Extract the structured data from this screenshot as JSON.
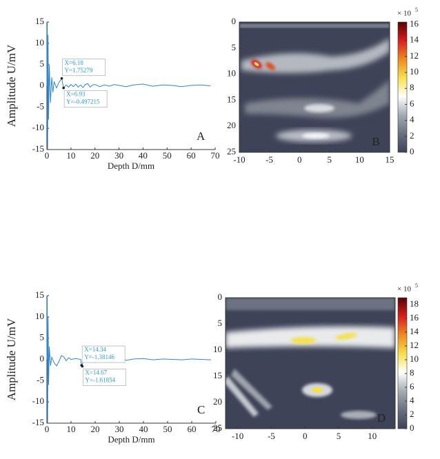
{
  "chart_data": [
    {
      "type": "line",
      "label": "A",
      "ylabel": "Amplitude U/mV",
      "xlabel": "Depth D/mm",
      "xlim": [
        0,
        70
      ],
      "ylim": [
        -15,
        15
      ],
      "xticks": [
        0,
        10,
        20,
        30,
        40,
        50,
        60,
        70
      ],
      "yticks": [
        15,
        10,
        5,
        0,
        -5,
        -10,
        -15
      ],
      "series": [
        {
          "color": "#2f86c8",
          "x": [
            0,
            0.15,
            0.3,
            0.5,
            0.7,
            1,
            1.5,
            2,
            2.5,
            3,
            4,
            5,
            6.18,
            6.93,
            8,
            9,
            10,
            11,
            12,
            13,
            14,
            15,
            16,
            17,
            18,
            19,
            20,
            22,
            24,
            26,
            28,
            30,
            33,
            36,
            40,
            44,
            48,
            52,
            56,
            60,
            64,
            68
          ],
          "values": [
            0,
            15,
            -15,
            12,
            -8,
            5,
            -4,
            2,
            -1.5,
            1,
            -0.5,
            0.8,
            1.75279,
            -0.497215,
            0.2,
            -0.3,
            0.3,
            -0.2,
            0.4,
            -0.3,
            0.2,
            -0.4,
            0.3,
            0.5,
            -0.3,
            0.2,
            0.3,
            -0.2,
            0.2,
            -0.1,
            0.3,
            0.1,
            -0.2,
            0.2,
            0.4,
            -0.1,
            0.2,
            0.1,
            -0.2,
            0.1,
            0.2,
            0
          ]
        }
      ],
      "annotations": [
        {
          "x": 6.18,
          "y": 1.75279,
          "text_x": "X=6.18",
          "text_y": "Y=1.75279"
        },
        {
          "x": 6.93,
          "y": -0.497215,
          "text_x": "X=6.93",
          "text_y": "Y=-0.497215"
        }
      ]
    },
    {
      "type": "heatmap",
      "label": "B",
      "xlim": [
        -10,
        15
      ],
      "ylim": [
        0,
        25
      ],
      "xticks": [
        -10,
        -5,
        0,
        5,
        10,
        15
      ],
      "yticks": [
        0,
        5,
        10,
        15,
        20,
        25
      ],
      "clim": [
        0,
        16.3
      ],
      "cticks": [
        0,
        2,
        4,
        6,
        8,
        10,
        12,
        14,
        16
      ],
      "colorbar_label": "× 10",
      "colorbar_exponent": "5",
      "colormap": [
        "#3e4259",
        "#6b7080",
        "#a5abb2",
        "#ffffff",
        "#f5e14a",
        "#f08a1e",
        "#d81f1f",
        "#5a0000"
      ]
    },
    {
      "type": "line",
      "label": "C",
      "ylabel": "Amplitude U/mV",
      "xlabel": "Depth D/mm",
      "xlim": [
        0,
        70
      ],
      "ylim": [
        -15,
        15
      ],
      "xticks": [
        0,
        10,
        20,
        30,
        40,
        50,
        60,
        70
      ],
      "yticks": [
        15,
        10,
        5,
        0,
        -5,
        -10,
        -15
      ],
      "series": [
        {
          "color": "#2f86c8",
          "x": [
            0,
            0.15,
            0.3,
            0.5,
            0.7,
            1,
            1.5,
            2,
            3,
            4,
            5,
            6,
            7,
            8,
            9,
            10,
            12,
            14,
            14.34,
            14.67,
            15,
            16,
            18,
            20,
            22,
            24,
            26,
            28,
            30,
            33,
            36,
            40,
            44,
            48,
            52,
            56,
            60,
            64,
            68
          ],
          "values": [
            0,
            15,
            -15,
            10,
            -6,
            3,
            -1.5,
            0.5,
            -0.8,
            -1.5,
            -0.5,
            0.9,
            0.6,
            -0.3,
            0.4,
            0,
            0.2,
            0,
            -1.38146,
            -1.61854,
            0.6,
            0.1,
            -0.2,
            0.2,
            0.1,
            -0.1,
            0.2,
            -0.1,
            0.1,
            -0.2,
            0.1,
            0.2,
            -0.1,
            0.1,
            0,
            -0.1,
            0.1,
            0,
            -0.1
          ]
        }
      ],
      "annotations": [
        {
          "x": 14.34,
          "y": -1.38146,
          "text_x": "X=14.34",
          "text_y": "Y=-1.38146"
        },
        {
          "x": 14.67,
          "y": -1.61854,
          "text_x": "X=14.67",
          "text_y": "Y=-1.61854"
        }
      ]
    },
    {
      "type": "heatmap",
      "label": "D",
      "xlim": [
        -11.8,
        13.4
      ],
      "ylim": [
        0,
        25
      ],
      "xticks": [
        -10,
        -5,
        0,
        5,
        10
      ],
      "yticks": [
        0,
        5,
        10,
        15,
        20,
        25
      ],
      "clim": [
        0,
        19
      ],
      "cticks": [
        0,
        2,
        4,
        6,
        8,
        10,
        12,
        14,
        16,
        18
      ],
      "colorbar_label": "× 10",
      "colorbar_exponent": "5",
      "colormap": [
        "#3e4259",
        "#6b7080",
        "#a5abb2",
        "#ffffff",
        "#f5e14a",
        "#f08a1e",
        "#d81f1f",
        "#5a0000"
      ]
    }
  ]
}
